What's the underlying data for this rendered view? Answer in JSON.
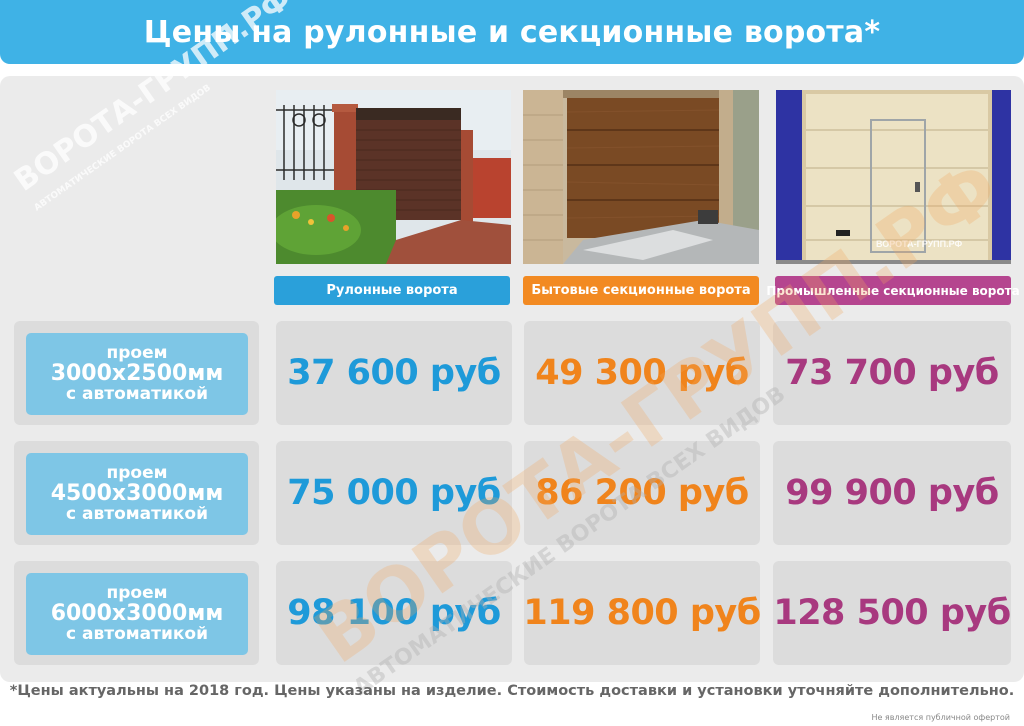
{
  "header": {
    "title": "Цены на рулонные и секционные ворота*"
  },
  "brand": {
    "watermark": "ВОРОТА-ГРУПП.РФ",
    "tagline": "АВТОМАТИЧЕСКИЕ ВОРОТА ВСЕХ ВИДОВ",
    "photo_mark": "ВОРОТА-ГРУПП.РФ"
  },
  "columns": [
    {
      "label": "Рулонные ворота",
      "color": "#2aa0da"
    },
    {
      "label": "Бытовые секционные ворота",
      "color": "#f28a22"
    },
    {
      "label": "Промышленные секционные ворота",
      "color": "#b5458f"
    }
  ],
  "rows": [
    {
      "line1": "проем",
      "size": "3000х2500мм",
      "line3": "с автоматикой",
      "prices": [
        "37 600 руб",
        "49 300 руб",
        "73 700 руб"
      ]
    },
    {
      "line1": "проем",
      "size": "4500х3000мм",
      "line3": "с автоматикой",
      "prices": [
        "75 000 руб",
        "86 200 руб",
        "99 900 руб"
      ]
    },
    {
      "line1": "проем",
      "size": "6000х3000мм",
      "line3": "с автоматикой",
      "prices": [
        "98 100 руб",
        "119 800 руб",
        "128 500 руб"
      ]
    }
  ],
  "price_colors": [
    "#1e9ad9",
    "#f0841c",
    "#a8397f"
  ],
  "footnote": "*Цены актуальны на 2018 год. Цены указаны на изделие. Стоимость доставки и установки уточняйте дополнительно.",
  "disclaimer": "Не является публичной офертой"
}
